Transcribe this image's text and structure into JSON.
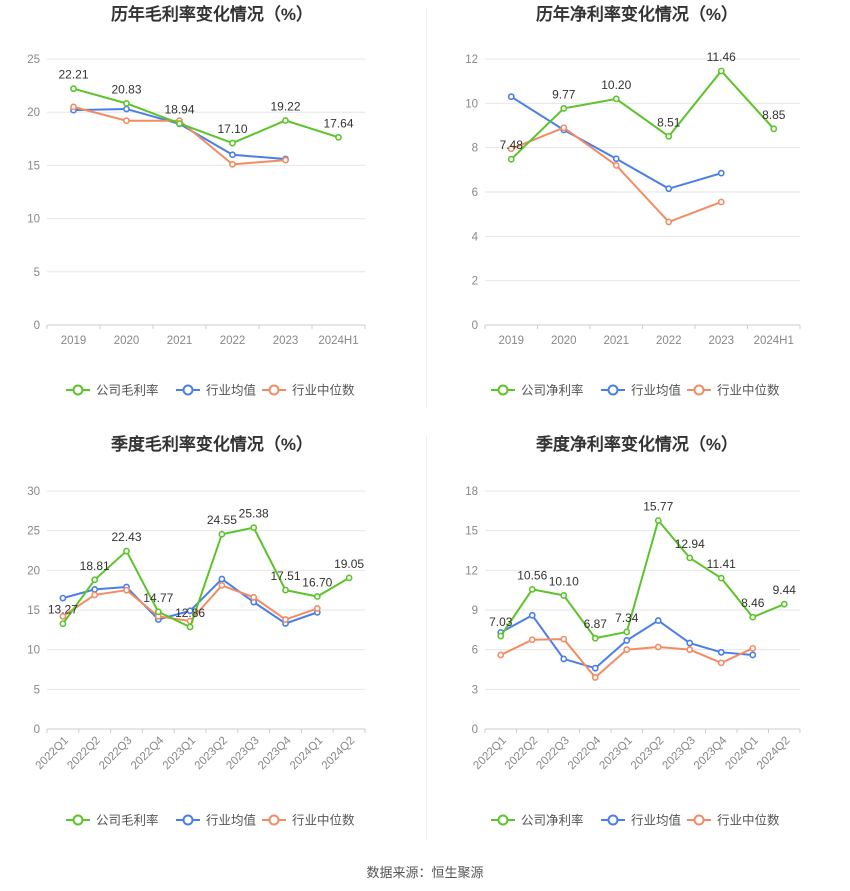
{
  "source": "数据来源：恒生聚源",
  "colors": {
    "company": "#5cc42a",
    "avg": "#4a7ee8",
    "median": "#f28c64",
    "grid": "#e6e6e6"
  },
  "chart_data": [
    {
      "type": "line",
      "title": "历年毛利率变化情况（%）",
      "categories": [
        "2019",
        "2020",
        "2021",
        "2022",
        "2023",
        "2024H1"
      ],
      "ylim": [
        0,
        25
      ],
      "yticks": [
        0,
        5,
        10,
        15,
        20,
        25
      ],
      "legend": [
        "公司毛利率",
        "行业均值",
        "行业中位数"
      ],
      "series": [
        {
          "name": "公司毛利率",
          "values": [
            22.21,
            20.83,
            18.94,
            17.1,
            19.22,
            17.64
          ],
          "labels": [
            "22.21",
            "20.83",
            "18.94",
            "17.10",
            "19.22",
            "17.64"
          ]
        },
        {
          "name": "行业均值",
          "values": [
            20.2,
            20.3,
            18.9,
            16.0,
            15.6,
            null
          ]
        },
        {
          "name": "行业中位数",
          "values": [
            20.5,
            19.2,
            19.2,
            15.1,
            15.5,
            null
          ]
        }
      ]
    },
    {
      "type": "line",
      "title": "历年净利率变化情况（%）",
      "categories": [
        "2019",
        "2020",
        "2021",
        "2022",
        "2023",
        "2024H1"
      ],
      "ylim": [
        0,
        12
      ],
      "yticks": [
        0,
        2,
        4,
        6,
        8,
        10,
        12
      ],
      "legend": [
        "公司净利率",
        "行业均值",
        "行业中位数"
      ],
      "series": [
        {
          "name": "公司净利率",
          "values": [
            7.48,
            9.77,
            10.2,
            8.51,
            11.46,
            8.85
          ],
          "labels": [
            "7.48",
            "9.77",
            "10.20",
            "8.51",
            "11.46",
            "8.85"
          ]
        },
        {
          "name": "行业均值",
          "values": [
            10.3,
            8.8,
            7.5,
            6.15,
            6.85,
            null
          ]
        },
        {
          "name": "行业中位数",
          "values": [
            7.95,
            8.9,
            7.2,
            4.65,
            5.55,
            null
          ]
        }
      ]
    },
    {
      "type": "line",
      "title": "季度毛利率变化情况（%）",
      "categories": [
        "2022Q1",
        "2022Q2",
        "2022Q3",
        "2022Q4",
        "2023Q1",
        "2023Q2",
        "2023Q3",
        "2023Q4",
        "2024Q1",
        "2024Q2"
      ],
      "ylim": [
        0,
        30
      ],
      "yticks": [
        0,
        5,
        10,
        15,
        20,
        25,
        30
      ],
      "legend": [
        "公司毛利率",
        "行业均值",
        "行业中位数"
      ],
      "series": [
        {
          "name": "公司毛利率",
          "values": [
            13.27,
            18.81,
            22.43,
            14.77,
            12.86,
            24.55,
            25.38,
            17.51,
            16.7,
            19.05
          ],
          "labels": [
            "13.27",
            "18.81",
            "22.43",
            "14.77",
            "12.86",
            "24.55",
            "25.38",
            "17.51",
            "16.70",
            "19.05"
          ]
        },
        {
          "name": "行业均值",
          "values": [
            16.5,
            17.6,
            17.9,
            13.8,
            14.9,
            18.9,
            16.0,
            13.3,
            14.7,
            null
          ]
        },
        {
          "name": "行业中位数",
          "values": [
            14.2,
            16.9,
            17.5,
            14.2,
            13.6,
            18.1,
            16.6,
            13.8,
            15.2,
            null
          ]
        }
      ]
    },
    {
      "type": "line",
      "title": "季度净利率变化情况（%）",
      "categories": [
        "2022Q1",
        "2022Q2",
        "2022Q3",
        "2022Q4",
        "2023Q1",
        "2023Q2",
        "2023Q3",
        "2023Q4",
        "2024Q1",
        "2024Q2"
      ],
      "ylim": [
        0,
        18
      ],
      "yticks": [
        0,
        3,
        6,
        9,
        12,
        15,
        18
      ],
      "legend": [
        "公司净利率",
        "行业均值",
        "行业中位数"
      ],
      "series": [
        {
          "name": "公司净利率",
          "values": [
            7.03,
            10.56,
            10.1,
            6.87,
            7.34,
            15.77,
            12.94,
            11.41,
            8.46,
            9.44
          ],
          "labels": [
            "7.03",
            "10.56",
            "10.10",
            "6.87",
            "7.34",
            "15.77",
            "12.94",
            "11.41",
            "8.46",
            "9.44"
          ]
        },
        {
          "name": "行业均值",
          "values": [
            7.3,
            8.6,
            5.3,
            4.6,
            6.7,
            8.2,
            6.5,
            5.8,
            5.6,
            null
          ]
        },
        {
          "name": "行业中位数",
          "values": [
            5.6,
            6.75,
            6.8,
            3.9,
            6.0,
            6.2,
            6.0,
            5.0,
            6.1,
            null
          ]
        }
      ]
    }
  ]
}
